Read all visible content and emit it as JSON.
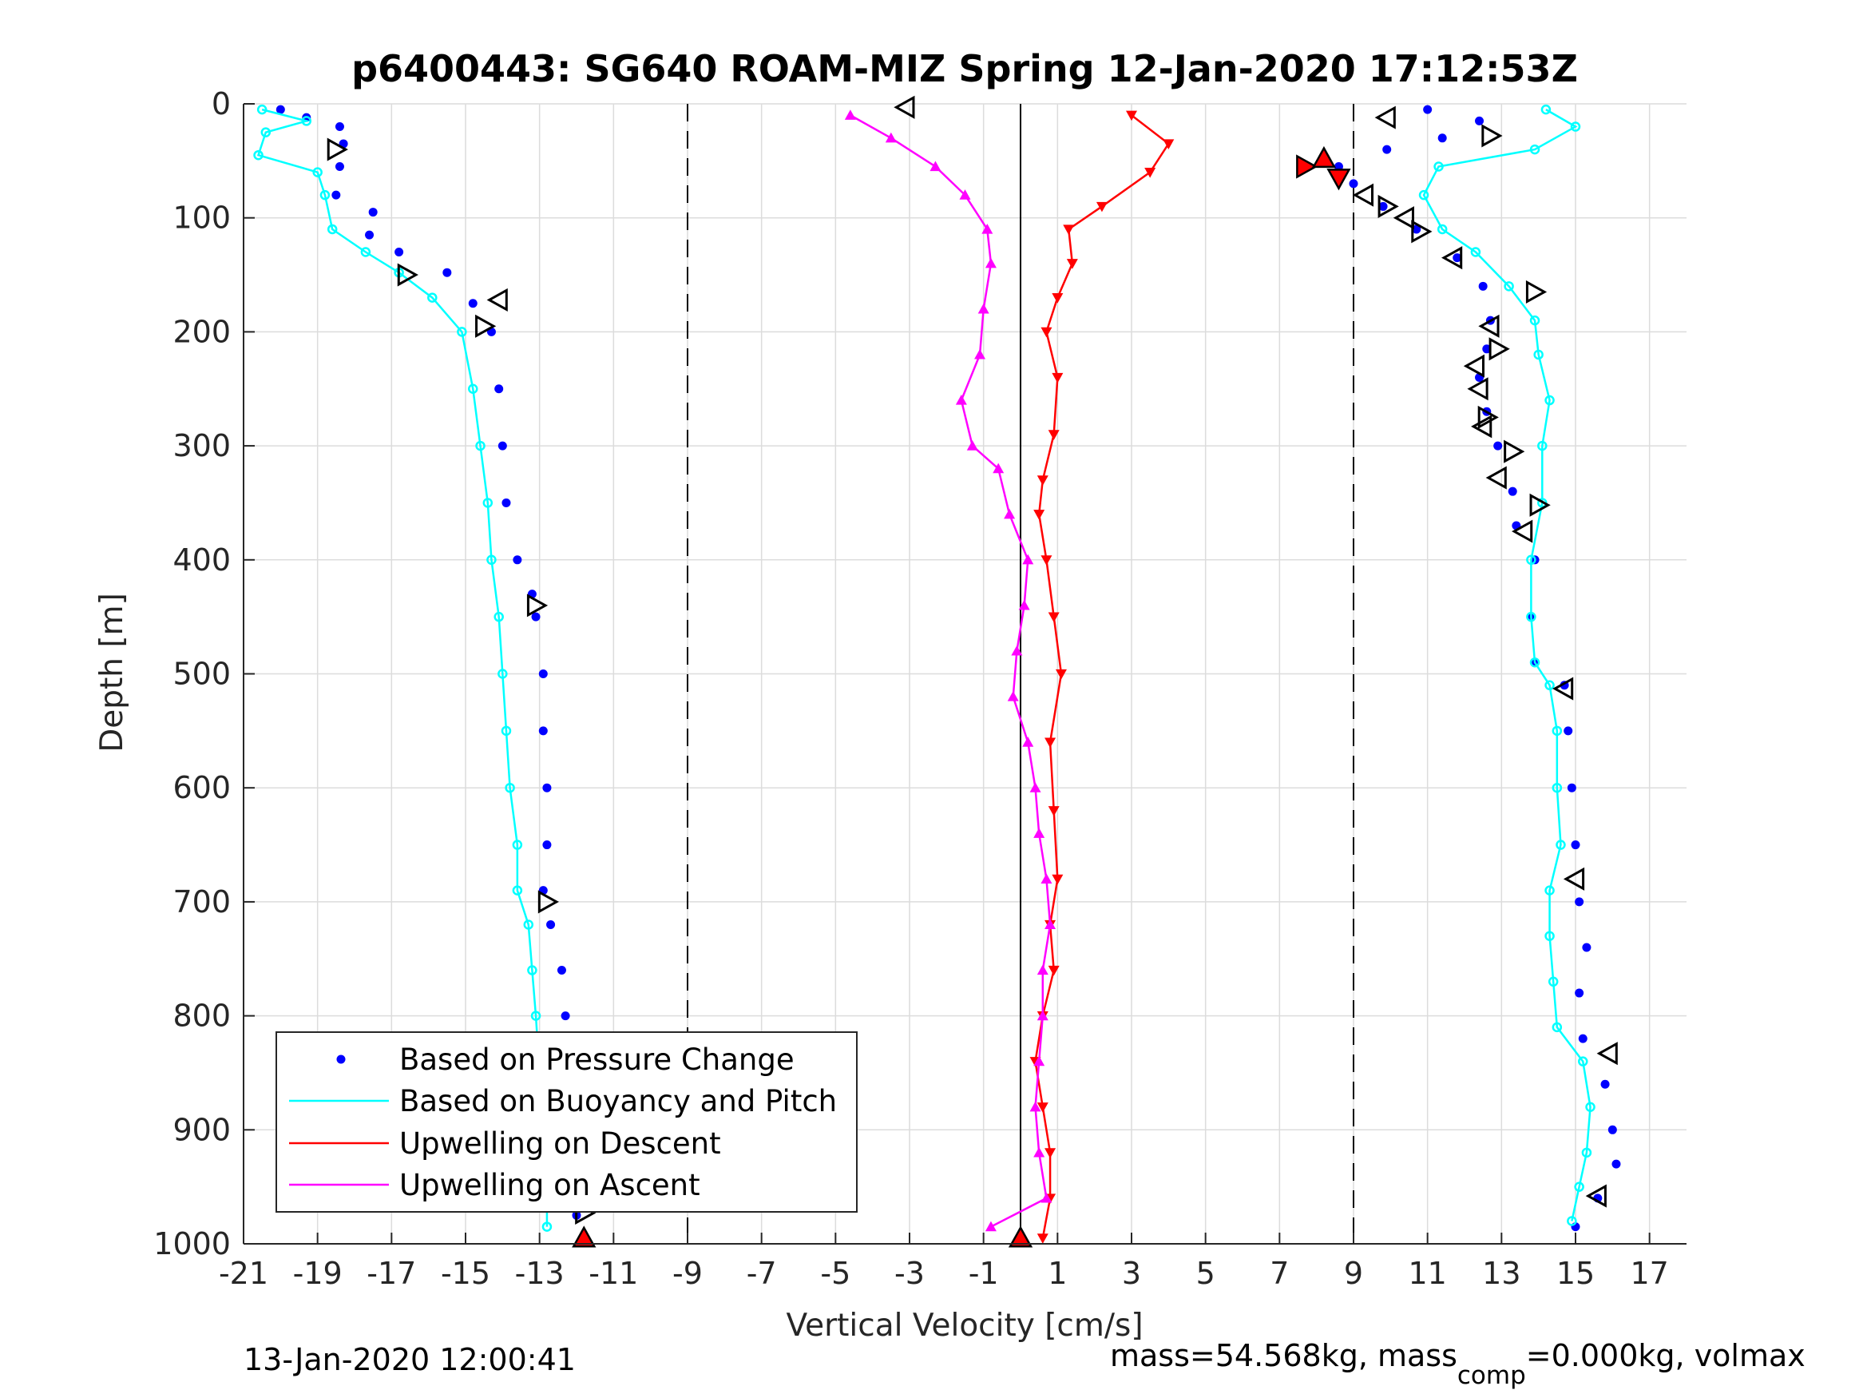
{
  "chart_data": {
    "type": "scatter",
    "title": "p6400443: SG640 ROAM-MIZ Spring 12-Jan-2020 17:12:53Z",
    "xlabel": "Vertical Velocity [cm/s]",
    "ylabel": "Depth [m]",
    "xlim": [
      -21,
      18
    ],
    "ylim": [
      0,
      1000
    ],
    "y_reversed": true,
    "xticks": [
      -21,
      -19,
      -17,
      -15,
      -13,
      -11,
      -9,
      -7,
      -5,
      -3,
      -1,
      1,
      3,
      5,
      7,
      9,
      11,
      13,
      15,
      17
    ],
    "xtick_labels": [
      "-21",
      "-19",
      "-17",
      "-15",
      "-13",
      "-11",
      "-9",
      "-7",
      "-5",
      "-3",
      "-1",
      "1",
      "3",
      "5",
      "7",
      "9",
      "11",
      "13",
      "15",
      "17"
    ],
    "yticks": [
      0,
      100,
      200,
      300,
      400,
      500,
      600,
      700,
      800,
      900,
      1000
    ],
    "ytick_labels": [
      "0",
      "100",
      "200",
      "300",
      "400",
      "500",
      "600",
      "700",
      "800",
      "900",
      "1000"
    ],
    "grid": true,
    "vertical_lines": [
      {
        "x": -9,
        "style": "dashed"
      },
      {
        "x": 0,
        "style": "solid"
      },
      {
        "x": 9,
        "style": "dashed"
      }
    ],
    "legend": {
      "placement": "lower-left",
      "entries": [
        {
          "label": "Based on Pressure Change",
          "color": "#0000ff",
          "style": "marker"
        },
        {
          "label": "Based on Buoyancy and Pitch",
          "color": "#00ffff",
          "style": "line"
        },
        {
          "label": "Upwelling on Descent",
          "color": "#ff0000",
          "style": "line"
        },
        {
          "label": "Upwelling on Ascent",
          "color": "#ff00ff",
          "style": "line"
        }
      ]
    },
    "series": [
      {
        "name": "Based on Pressure Change",
        "role": "descent",
        "color": "#0000ff",
        "marker": "dot",
        "points": [
          [
            -20,
            5
          ],
          [
            -19.3,
            12
          ],
          [
            -18.4,
            20
          ],
          [
            -18.3,
            35
          ],
          [
            -18.4,
            55
          ],
          [
            -18.5,
            80
          ],
          [
            -17.5,
            95
          ],
          [
            -17.6,
            115
          ],
          [
            -16.8,
            130
          ],
          [
            -15.5,
            148
          ],
          [
            -14.8,
            175
          ],
          [
            -14.3,
            200
          ],
          [
            -14.1,
            250
          ],
          [
            -14.0,
            300
          ],
          [
            -13.9,
            350
          ],
          [
            -13.6,
            400
          ],
          [
            -13.2,
            430
          ],
          [
            -13.1,
            450
          ],
          [
            -12.9,
            500
          ],
          [
            -12.9,
            550
          ],
          [
            -12.8,
            600
          ],
          [
            -12.8,
            650
          ],
          [
            -12.9,
            690
          ],
          [
            -12.7,
            720
          ],
          [
            -12.4,
            760
          ],
          [
            -12.3,
            800
          ],
          [
            -12.3,
            850
          ],
          [
            -12.2,
            900
          ],
          [
            -12.1,
            940
          ],
          [
            -12.0,
            975
          ]
        ]
      },
      {
        "name": "Based on Pressure Change",
        "role": "ascent",
        "color": "#0000ff",
        "marker": "dot",
        "points": [
          [
            15.0,
            985
          ],
          [
            15.6,
            960
          ],
          [
            16.1,
            930
          ],
          [
            16.0,
            900
          ],
          [
            15.8,
            860
          ],
          [
            15.2,
            820
          ],
          [
            15.1,
            780
          ],
          [
            15.3,
            740
          ],
          [
            15.1,
            700
          ],
          [
            15.0,
            650
          ],
          [
            14.9,
            600
          ],
          [
            14.8,
            550
          ],
          [
            14.7,
            510
          ],
          [
            13.9,
            490
          ],
          [
            13.8,
            450
          ],
          [
            13.9,
            400
          ],
          [
            13.4,
            370
          ],
          [
            13.3,
            340
          ],
          [
            12.9,
            300
          ],
          [
            12.6,
            270
          ],
          [
            12.4,
            240
          ],
          [
            12.6,
            215
          ],
          [
            12.7,
            190
          ],
          [
            12.5,
            160
          ],
          [
            11.8,
            135
          ],
          [
            10.7,
            110
          ],
          [
            9.8,
            90
          ],
          [
            9.0,
            70
          ],
          [
            8.6,
            55
          ],
          [
            9.9,
            40
          ],
          [
            11.4,
            30
          ],
          [
            12.4,
            15
          ],
          [
            11.0,
            5
          ]
        ]
      },
      {
        "name": "Based on Buoyancy and Pitch",
        "role": "descent",
        "color": "#00ffff",
        "marker": "circle-line",
        "points": [
          [
            -20.5,
            5
          ],
          [
            -19.3,
            15
          ],
          [
            -20.4,
            25
          ],
          [
            -20.6,
            45
          ],
          [
            -19.0,
            60
          ],
          [
            -18.8,
            80
          ],
          [
            -18.6,
            110
          ],
          [
            -17.7,
            130
          ],
          [
            -16.8,
            148
          ],
          [
            -15.9,
            170
          ],
          [
            -15.1,
            200
          ],
          [
            -14.8,
            250
          ],
          [
            -14.6,
            300
          ],
          [
            -14.4,
            350
          ],
          [
            -14.3,
            400
          ],
          [
            -14.1,
            450
          ],
          [
            -14.0,
            500
          ],
          [
            -13.9,
            550
          ],
          [
            -13.8,
            600
          ],
          [
            -13.6,
            650
          ],
          [
            -13.6,
            690
          ],
          [
            -13.3,
            720
          ],
          [
            -13.2,
            760
          ],
          [
            -13.1,
            800
          ],
          [
            -13.0,
            850
          ],
          [
            -12.9,
            900
          ],
          [
            -12.8,
            940
          ],
          [
            -12.8,
            985
          ]
        ]
      },
      {
        "name": "Based on Buoyancy and Pitch",
        "role": "ascent",
        "color": "#00ffff",
        "marker": "circle-line",
        "points": [
          [
            14.9,
            980
          ],
          [
            15.1,
            950
          ],
          [
            15.3,
            920
          ],
          [
            15.4,
            880
          ],
          [
            15.2,
            840
          ],
          [
            14.5,
            810
          ],
          [
            14.4,
            770
          ],
          [
            14.3,
            730
          ],
          [
            14.3,
            690
          ],
          [
            14.6,
            650
          ],
          [
            14.5,
            600
          ],
          [
            14.5,
            550
          ],
          [
            14.3,
            510
          ],
          [
            13.9,
            490
          ],
          [
            13.8,
            450
          ],
          [
            13.8,
            400
          ],
          [
            14.1,
            350
          ],
          [
            14.1,
            300
          ],
          [
            14.3,
            260
          ],
          [
            14.0,
            220
          ],
          [
            13.9,
            190
          ],
          [
            13.2,
            160
          ],
          [
            12.3,
            130
          ],
          [
            11.4,
            110
          ],
          [
            10.9,
            80
          ],
          [
            11.3,
            55
          ],
          [
            13.9,
            40
          ],
          [
            15.0,
            20
          ],
          [
            14.2,
            5
          ]
        ]
      },
      {
        "name": "Upwelling on Descent",
        "color": "#ff0000",
        "marker": "triangle-down",
        "points": [
          [
            3.0,
            10
          ],
          [
            4.0,
            35
          ],
          [
            3.5,
            60
          ],
          [
            2.2,
            90
          ],
          [
            1.3,
            110
          ],
          [
            1.4,
            140
          ],
          [
            1.0,
            170
          ],
          [
            0.7,
            200
          ],
          [
            1.0,
            240
          ],
          [
            0.9,
            290
          ],
          [
            0.6,
            330
          ],
          [
            0.5,
            360
          ],
          [
            0.7,
            400
          ],
          [
            0.9,
            450
          ],
          [
            1.1,
            500
          ],
          [
            0.8,
            560
          ],
          [
            0.9,
            620
          ],
          [
            1.0,
            680
          ],
          [
            0.8,
            720
          ],
          [
            0.9,
            760
          ],
          [
            0.6,
            800
          ],
          [
            0.4,
            840
          ],
          [
            0.6,
            880
          ],
          [
            0.8,
            920
          ],
          [
            0.8,
            960
          ],
          [
            0.6,
            995
          ]
        ]
      },
      {
        "name": "Upwelling on Ascent",
        "color": "#ff00ff",
        "marker": "triangle-up",
        "points": [
          [
            -0.8,
            985
          ],
          [
            0.7,
            960
          ],
          [
            0.5,
            920
          ],
          [
            0.4,
            880
          ],
          [
            0.5,
            840
          ],
          [
            0.6,
            800
          ],
          [
            0.6,
            760
          ],
          [
            0.8,
            720
          ],
          [
            0.7,
            680
          ],
          [
            0.5,
            640
          ],
          [
            0.4,
            600
          ],
          [
            0.2,
            560
          ],
          [
            -0.2,
            520
          ],
          [
            -0.1,
            480
          ],
          [
            0.1,
            440
          ],
          [
            0.2,
            400
          ],
          [
            -0.3,
            360
          ],
          [
            -0.6,
            320
          ],
          [
            -1.3,
            300
          ],
          [
            -1.6,
            260
          ],
          [
            -1.1,
            220
          ],
          [
            -1.0,
            180
          ],
          [
            -0.8,
            140
          ],
          [
            -0.9,
            110
          ],
          [
            -1.5,
            80
          ],
          [
            -2.3,
            55
          ],
          [
            -3.5,
            30
          ],
          [
            -4.6,
            10
          ]
        ]
      }
    ],
    "apogee_markers": [
      {
        "x": -11.8,
        "y": 995,
        "color": "#ff0000",
        "shape": "triangle-up"
      },
      {
        "x": 0,
        "y": 995,
        "color": "#ff0000",
        "shape": "triangle-up"
      },
      {
        "x": 7.7,
        "y": 55,
        "color": "#ff0000",
        "shape": "triangle-right"
      },
      {
        "x": 8.2,
        "y": 48,
        "color": "#ff0000",
        "shape": "triangle-up"
      },
      {
        "x": 8.6,
        "y": 65,
        "color": "#ff0000",
        "shape": "triangle-down"
      }
    ],
    "event_markers": [
      {
        "x": -3.1,
        "y": 3,
        "dir": "left"
      },
      {
        "x": -18.5,
        "y": 40,
        "dir": "right"
      },
      {
        "x": -16.6,
        "y": 150,
        "dir": "right"
      },
      {
        "x": -14.1,
        "y": 172,
        "dir": "left"
      },
      {
        "x": -14.5,
        "y": 195,
        "dir": "right"
      },
      {
        "x": -13.1,
        "y": 440,
        "dir": "right"
      },
      {
        "x": -12.8,
        "y": 700,
        "dir": "right"
      },
      {
        "x": -11.8,
        "y": 973,
        "dir": "right"
      },
      {
        "x": 9.9,
        "y": 12,
        "dir": "left"
      },
      {
        "x": 12.7,
        "y": 28,
        "dir": "right"
      },
      {
        "x": 9.3,
        "y": 80,
        "dir": "left"
      },
      {
        "x": 9.9,
        "y": 90,
        "dir": "right"
      },
      {
        "x": 10.4,
        "y": 100,
        "dir": "left"
      },
      {
        "x": 10.8,
        "y": 112,
        "dir": "right"
      },
      {
        "x": 11.7,
        "y": 135,
        "dir": "left"
      },
      {
        "x": 13.9,
        "y": 165,
        "dir": "right"
      },
      {
        "x": 12.7,
        "y": 195,
        "dir": "left"
      },
      {
        "x": 12.9,
        "y": 215,
        "dir": "right"
      },
      {
        "x": 12.3,
        "y": 230,
        "dir": "left"
      },
      {
        "x": 12.4,
        "y": 250,
        "dir": "left"
      },
      {
        "x": 12.6,
        "y": 275,
        "dir": "right"
      },
      {
        "x": 12.5,
        "y": 283,
        "dir": "left"
      },
      {
        "x": 13.3,
        "y": 305,
        "dir": "right"
      },
      {
        "x": 12.9,
        "y": 328,
        "dir": "left"
      },
      {
        "x": 14.0,
        "y": 352,
        "dir": "right"
      },
      {
        "x": 13.6,
        "y": 375,
        "dir": "left"
      },
      {
        "x": 14.7,
        "y": 513,
        "dir": "left"
      },
      {
        "x": 15.0,
        "y": 680,
        "dir": "left"
      },
      {
        "x": 15.9,
        "y": 833,
        "dir": "left"
      },
      {
        "x": 15.6,
        "y": 958,
        "dir": "left"
      }
    ]
  },
  "footer": {
    "left": "13-Jan-2020 12:00:41",
    "right_main": "mass=54.568kg, mass",
    "right_sub": "comp",
    "right_tail": "=0.000kg, volmax"
  }
}
